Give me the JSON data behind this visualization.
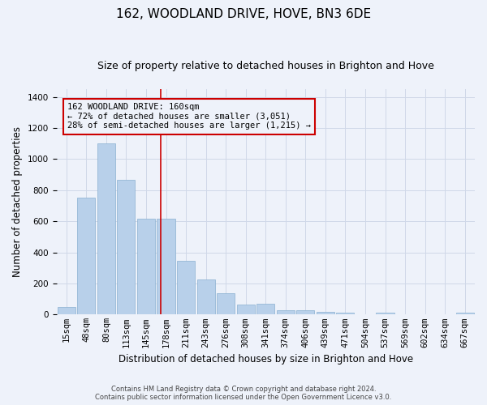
{
  "title": "162, WOODLAND DRIVE, HOVE, BN3 6DE",
  "subtitle": "Size of property relative to detached houses in Brighton and Hove",
  "xlabel": "Distribution of detached houses by size in Brighton and Hove",
  "ylabel": "Number of detached properties",
  "footer_line1": "Contains HM Land Registry data © Crown copyright and database right 2024.",
  "footer_line2": "Contains public sector information licensed under the Open Government Licence v3.0.",
  "bar_labels": [
    "15sqm",
    "48sqm",
    "80sqm",
    "113sqm",
    "145sqm",
    "178sqm",
    "211sqm",
    "243sqm",
    "276sqm",
    "308sqm",
    "341sqm",
    "374sqm",
    "406sqm",
    "439sqm",
    "471sqm",
    "504sqm",
    "537sqm",
    "569sqm",
    "602sqm",
    "634sqm",
    "667sqm"
  ],
  "bar_values": [
    50,
    750,
    1100,
    865,
    615,
    615,
    345,
    225,
    135,
    65,
    70,
    30,
    30,
    20,
    15,
    0,
    12,
    0,
    0,
    0,
    12
  ],
  "bar_color": "#b8d0ea",
  "bar_edgecolor": "#8ab0d0",
  "annotation_text": "162 WOODLAND DRIVE: 160sqm\n← 72% of detached houses are smaller (3,051)\n28% of semi-detached houses are larger (1,215) →",
  "vline_x": 4.72,
  "vline_color": "#cc0000",
  "annotation_box_edgecolor": "#cc0000",
  "annotation_box_facecolor": "#eef2fa",
  "ylim": [
    0,
    1450
  ],
  "yticks": [
    0,
    200,
    400,
    600,
    800,
    1000,
    1200,
    1400
  ],
  "background_color": "#eef2fa",
  "grid_color": "#d0d8e8",
  "title_fontsize": 11,
  "subtitle_fontsize": 9,
  "axis_label_fontsize": 8.5,
  "tick_fontsize": 7.5,
  "annotation_fontsize": 7.5,
  "footer_fontsize": 6
}
